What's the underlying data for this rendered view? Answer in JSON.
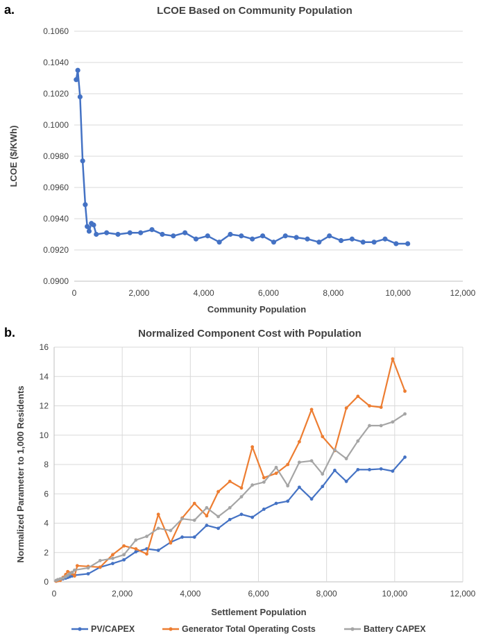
{
  "chart_data": [
    {
      "panel_label": "a.",
      "type": "line",
      "title": "LCOE Based on Community Population",
      "xlabel": "Community Population",
      "ylabel": "LCOE ($/KWh)",
      "xlim": [
        0,
        12000
      ],
      "ylim": [
        0.09,
        0.106
      ],
      "x_ticks": [
        0,
        2000,
        4000,
        6000,
        8000,
        10000,
        12000
      ],
      "x_tick_labels": [
        "0",
        "2,000",
        "4,000",
        "6,000",
        "8,000",
        "10,000",
        "12,000"
      ],
      "y_ticks": [
        0.09,
        0.092,
        0.094,
        0.096,
        0.098,
        0.1,
        0.102,
        0.104,
        0.106
      ],
      "y_tick_labels": [
        "0.0900",
        "0.0920",
        "0.0940",
        "0.0960",
        "0.0980",
        "0.1000",
        "0.1020",
        "0.1040",
        "0.1060"
      ],
      "grid": "horizontal",
      "color": "#4472c4",
      "series": [
        {
          "name": "LCOE",
          "x": [
            60,
            110,
            180,
            260,
            340,
            400,
            460,
            530,
            600,
            680,
            1000,
            1350,
            1720,
            2050,
            2400,
            2720,
            3060,
            3420,
            3760,
            4120,
            4480,
            4820,
            5160,
            5500,
            5820,
            6160,
            6520,
            6860,
            7200,
            7560,
            7880,
            8240,
            8580,
            8920,
            9260,
            9600,
            9940,
            10300
          ],
          "y": [
            0.1029,
            0.1035,
            0.1018,
            0.0977,
            0.0949,
            0.0935,
            0.0932,
            0.0937,
            0.0936,
            0.093,
            0.0931,
            0.093,
            0.0931,
            0.0931,
            0.0933,
            0.093,
            0.0929,
            0.0931,
            0.0927,
            0.0929,
            0.0925,
            0.093,
            0.0929,
            0.0927,
            0.0929,
            0.0925,
            0.0929,
            0.0928,
            0.0927,
            0.0925,
            0.0929,
            0.0926,
            0.0927,
            0.0925,
            0.0925,
            0.0927,
            0.0924,
            0.0924
          ]
        }
      ]
    },
    {
      "panel_label": "b.",
      "type": "line",
      "title": "Normalized Component Cost with Population",
      "xlabel": "Settlement Population",
      "ylabel": "Normalized Parameter to 1,000 Residents",
      "xlim": [
        0,
        12000
      ],
      "ylim": [
        0,
        16
      ],
      "x_ticks": [
        0,
        2000,
        4000,
        6000,
        8000,
        10000,
        12000
      ],
      "x_tick_labels": [
        "0",
        "2,000",
        "4,000",
        "6,000",
        "8,000",
        "10,000",
        "12,000"
      ],
      "y_ticks": [
        0,
        2,
        4,
        6,
        8,
        10,
        12,
        14,
        16
      ],
      "y_tick_labels": [
        "0",
        "2",
        "4",
        "6",
        "8",
        "10",
        "12",
        "14",
        "16"
      ],
      "grid": "both",
      "legend_position": "bottom",
      "series": [
        {
          "name": "PV/CAPEX",
          "color": "#4472c4",
          "x": [
            60,
            110,
            180,
            260,
            340,
            400,
            460,
            530,
            600,
            1000,
            1350,
            1720,
            2050,
            2400,
            2720,
            3060,
            3420,
            3760,
            4120,
            4480,
            4820,
            5160,
            5500,
            5820,
            6160,
            6520,
            6860,
            7200,
            7560,
            7880,
            8240,
            8580,
            8920,
            9260,
            9600,
            9940,
            10300
          ],
          "values": [
            0.05,
            0.1,
            0.15,
            0.2,
            0.25,
            0.3,
            0.35,
            0.4,
            0.45,
            0.55,
            1.0,
            1.25,
            1.5,
            2.05,
            2.25,
            2.15,
            2.7,
            3.05,
            3.05,
            3.85,
            3.65,
            4.25,
            4.6,
            4.4,
            4.95,
            5.35,
            5.5,
            6.45,
            5.65,
            6.5,
            7.6,
            6.85,
            7.65,
            7.65,
            7.7,
            7.55,
            8.5
          ]
        },
        {
          "name": "Generator Total Operating Costs",
          "color": "#ed7d31",
          "x": [
            60,
            110,
            180,
            260,
            340,
            400,
            460,
            530,
            600,
            680,
            1000,
            1350,
            1720,
            2050,
            2400,
            2720,
            3060,
            3420,
            3760,
            4120,
            4480,
            4820,
            5160,
            5500,
            5820,
            6160,
            6520,
            6860,
            7200,
            7560,
            7880,
            8240,
            8580,
            8920,
            9260,
            9600,
            9940,
            10300
          ],
          "values": [
            0.05,
            0.08,
            0.1,
            0.3,
            0.5,
            0.7,
            0.6,
            0.55,
            0.4,
            1.1,
            1.05,
            1.0,
            1.85,
            2.45,
            2.25,
            1.9,
            4.6,
            2.65,
            4.35,
            5.35,
            4.5,
            6.15,
            6.85,
            6.4,
            9.2,
            7.1,
            7.4,
            8.0,
            9.55,
            11.75,
            9.9,
            8.95,
            11.85,
            12.65,
            12.0,
            11.9,
            15.2,
            13.0
          ]
        },
        {
          "name": "Battery CAPEX",
          "color": "#a5a5a5",
          "x": [
            60,
            110,
            180,
            260,
            340,
            400,
            460,
            530,
            600,
            1000,
            1350,
            1720,
            2050,
            2400,
            2720,
            3060,
            3420,
            3760,
            4120,
            4480,
            4820,
            5160,
            5500,
            5820,
            6160,
            6520,
            6860,
            7200,
            7560,
            7880,
            8240,
            8580,
            8920,
            9260,
            9600,
            9940,
            10300
          ],
          "values": [
            0.1,
            0.15,
            0.2,
            0.25,
            0.35,
            0.45,
            0.55,
            0.65,
            0.8,
            0.95,
            1.45,
            1.6,
            1.85,
            2.85,
            3.1,
            3.65,
            3.5,
            4.3,
            4.2,
            5.05,
            4.45,
            5.05,
            5.8,
            6.6,
            6.8,
            7.8,
            6.55,
            8.15,
            8.25,
            7.35,
            9.0,
            8.4,
            9.6,
            10.65,
            10.65,
            10.9,
            11.45
          ]
        }
      ]
    }
  ]
}
